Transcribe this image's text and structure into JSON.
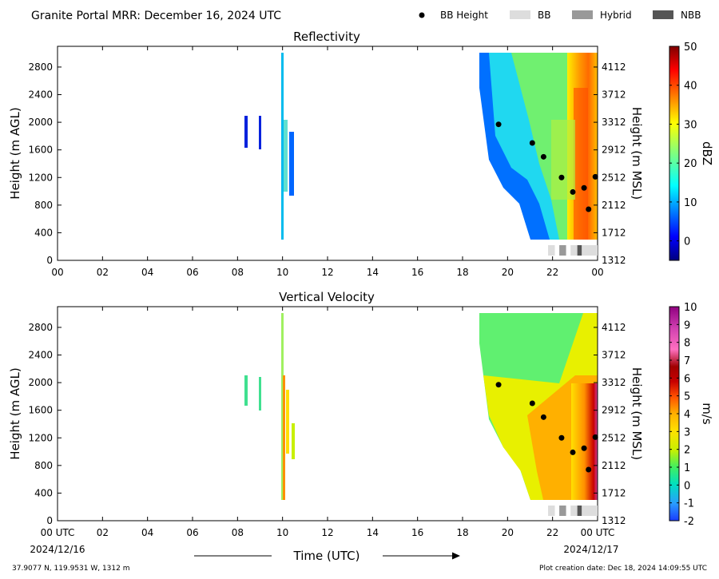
{
  "header": {
    "title": "Granite Portal MRR:  December 16, 2024 UTC",
    "legend": [
      {
        "label": "BB Height",
        "kind": "dot",
        "color": "#000000"
      },
      {
        "label": "BB",
        "kind": "rect",
        "color": "#dddddd"
      },
      {
        "label": "Hybrid",
        "kind": "rect",
        "color": "#999999"
      },
      {
        "label": "NBB",
        "kind": "rect",
        "color": "#555555"
      }
    ]
  },
  "footer": {
    "xlabel": "Time (UTC)",
    "start_date": "2024/12/16",
    "end_date": "2024/12/17",
    "location": "37.9077 N, 119.9531 W, 1312 m",
    "creation": "Plot creation date: Dec 18, 2024 14:09:55 UTC"
  },
  "chart_data": [
    {
      "type": "heatmap",
      "title": "Reflectivity",
      "ylabel": "Height (m AGL)",
      "y2label": "Height (m MSL)",
      "xticks": [
        "00",
        "02",
        "04",
        "06",
        "08",
        "10",
        "12",
        "14",
        "16",
        "18",
        "20",
        "22",
        "00"
      ],
      "xlim": [
        0,
        24
      ],
      "ylim": [
        0,
        3100
      ],
      "yticks": [
        0,
        400,
        800,
        1200,
        1600,
        2000,
        2400,
        2800
      ],
      "yticks_right": [
        "1312",
        "1712",
        "2112",
        "2512",
        "2912",
        "3312",
        "3712",
        "4112"
      ],
      "colorbar": {
        "label": "dBZ",
        "range": [
          -5,
          50
        ],
        "ticks": [
          0,
          10,
          20,
          30,
          40,
          50
        ],
        "palette": "jet"
      },
      "bb_height": [
        {
          "x": 19.6,
          "y": 1970
        },
        {
          "x": 21.1,
          "y": 1700
        },
        {
          "x": 21.6,
          "y": 1500
        },
        {
          "x": 22.4,
          "y": 1200
        },
        {
          "x": 22.9,
          "y": 990
        },
        {
          "x": 23.4,
          "y": 1050
        },
        {
          "x": 23.6,
          "y": 740
        },
        {
          "x": 23.9,
          "y": 1210
        }
      ],
      "bb_type": [
        {
          "start": 21.8,
          "end": 22.1,
          "type": "BB"
        },
        {
          "start": 22.3,
          "end": 22.6,
          "type": "Hybrid"
        },
        {
          "start": 22.8,
          "end": 23.1,
          "type": "BB"
        },
        {
          "start": 23.1,
          "end": 23.3,
          "type": "NBB"
        },
        {
          "start": 23.3,
          "end": 24.0,
          "type": "BB"
        }
      ]
    },
    {
      "type": "heatmap",
      "title": "Vertical Velocity",
      "ylabel": "Height (m AGL)",
      "y2label": "Height (m MSL)",
      "xticks": [
        "00 UTC",
        "02",
        "04",
        "06",
        "08",
        "10",
        "12",
        "14",
        "16",
        "18",
        "20",
        "22",
        "00 UTC"
      ],
      "xlim": [
        0,
        24
      ],
      "ylim": [
        0,
        3100
      ],
      "yticks": [
        0,
        400,
        800,
        1200,
        1600,
        2000,
        2400,
        2800
      ],
      "yticks_right": [
        "1312",
        "1712",
        "2112",
        "2512",
        "2912",
        "3312",
        "3712",
        "4112"
      ],
      "colorbar": {
        "label": "m/s",
        "range": [
          -2,
          10
        ],
        "ticks": [
          -2,
          -1,
          0,
          1,
          2,
          3,
          4,
          5,
          6,
          7,
          8,
          9,
          10
        ],
        "palette": "velocity"
      },
      "bb_height": [
        {
          "x": 19.6,
          "y": 1970
        },
        {
          "x": 21.1,
          "y": 1700
        },
        {
          "x": 21.6,
          "y": 1500
        },
        {
          "x": 22.4,
          "y": 1200
        },
        {
          "x": 22.9,
          "y": 990
        },
        {
          "x": 23.4,
          "y": 1050
        },
        {
          "x": 23.6,
          "y": 740
        },
        {
          "x": 23.9,
          "y": 1210
        }
      ],
      "bb_type": [
        {
          "start": 21.8,
          "end": 22.1,
          "type": "BB"
        },
        {
          "start": 22.3,
          "end": 22.6,
          "type": "Hybrid"
        },
        {
          "start": 22.8,
          "end": 23.1,
          "type": "BB"
        },
        {
          "start": 23.1,
          "end": 23.3,
          "type": "NBB"
        },
        {
          "start": 23.3,
          "end": 24.0,
          "type": "BB"
        }
      ]
    }
  ]
}
